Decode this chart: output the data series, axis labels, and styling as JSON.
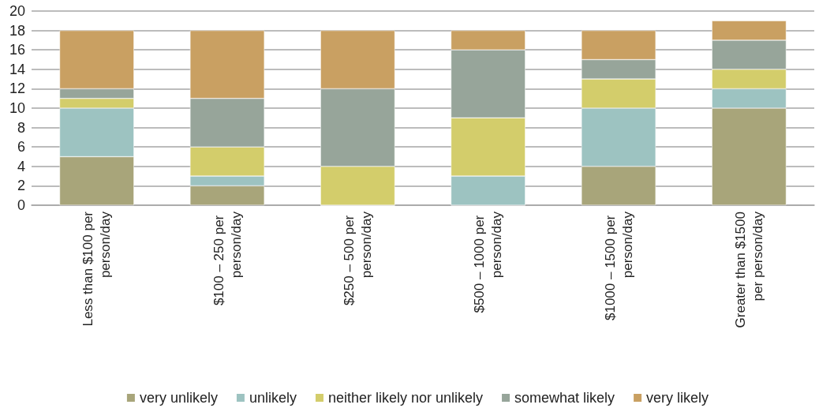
{
  "chart_data": {
    "type": "bar",
    "stacked": true,
    "categories": [
      "Less than $100 per person/day",
      "$100 – 250 per person/day",
      "$250 – 500 per person/day",
      "$500 – 1000 per person/day",
      "$1000 – 1500 per person/day",
      "Greater than $1500 per person/day"
    ],
    "series": [
      {
        "name": "very unlikely",
        "color": "#a8a57a",
        "values": [
          5,
          2,
          0,
          0,
          4,
          10
        ]
      },
      {
        "name": "unlikely",
        "color": "#9dc3c1",
        "values": [
          5,
          1,
          0,
          3,
          6,
          2
        ]
      },
      {
        "name": "neither likely nor unlikely",
        "color": "#d3cd6b",
        "values": [
          1,
          3,
          4,
          6,
          3,
          2
        ]
      },
      {
        "name": "somewhat likely",
        "color": "#97a59a",
        "values": [
          1,
          5,
          8,
          7,
          2,
          3
        ]
      },
      {
        "name": "very likely",
        "color": "#c9a062",
        "values": [
          6,
          7,
          6,
          2,
          3,
          2
        ]
      }
    ],
    "ylim": [
      0,
      20
    ],
    "yticks": [
      0,
      2,
      4,
      6,
      8,
      10,
      12,
      14,
      16,
      18,
      20
    ],
    "grid": "y",
    "legend": "bottom"
  }
}
